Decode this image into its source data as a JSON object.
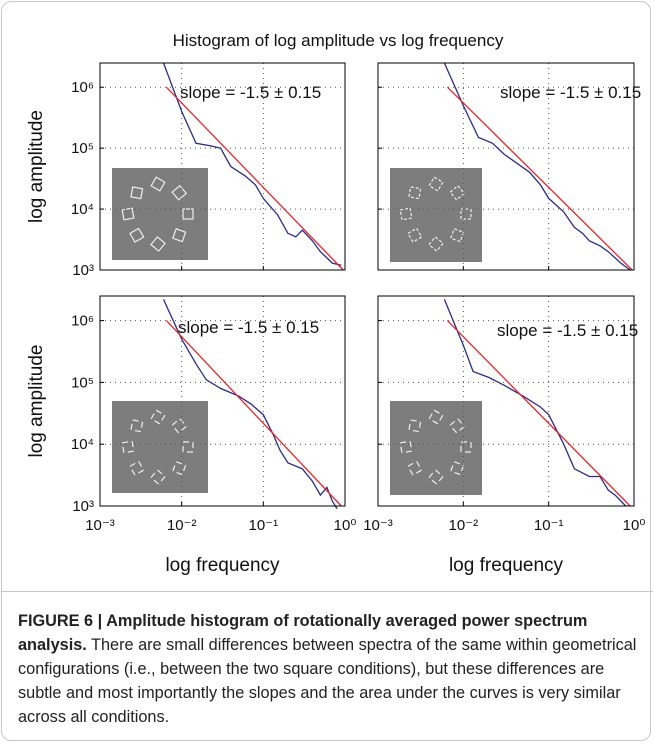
{
  "figure_title": "Histogram of log amplitude vs log frequency",
  "chart_data": [
    {
      "type": "line",
      "ylabel": "log amplitude",
      "annotation": "slope = -1.5 ± 0.15",
      "log_scale": true,
      "grid": true,
      "xlim": [
        0.001,
        1
      ],
      "ylim": [
        1000,
        2500000
      ],
      "xticks": [
        0.001,
        0.01,
        0.1,
        1
      ],
      "xtick_labels": false,
      "yticks": [
        {
          "value": 1000,
          "label": "10³"
        },
        {
          "value": 10000,
          "label": "10⁴"
        },
        {
          "value": 100000,
          "label": "10⁵"
        },
        {
          "value": 1000000,
          "label": "10⁶"
        }
      ],
      "series": [
        {
          "color": "#2b2b8c",
          "x": [
            0.006,
            0.01,
            0.015,
            0.022,
            0.03,
            0.04,
            0.06,
            0.08,
            0.1,
            0.15,
            0.2,
            0.25,
            0.3,
            0.4,
            0.5,
            0.7,
            0.9
          ],
          "values": [
            2500000,
            400000,
            120000,
            110000,
            100000,
            50000,
            35000,
            25000,
            15000,
            8000,
            4000,
            3500,
            4500,
            3000,
            2000,
            1300,
            1200
          ]
        },
        {
          "color": "#e8262a",
          "x": [
            0.0065,
            0.95
          ],
          "values": [
            1000000,
            1000
          ]
        }
      ]
    },
    {
      "type": "line",
      "annotation": "slope = -1.5 ± 0.15",
      "log_scale": true,
      "grid": true,
      "xlim": [
        0.001,
        1
      ],
      "ylim": [
        1000,
        2500000
      ],
      "xticks": [
        0.001,
        0.01,
        0.1,
        1
      ],
      "xtick_labels": false,
      "yticks": [
        1000,
        10000,
        100000,
        1000000
      ],
      "ytick_labels": false,
      "series": [
        {
          "color": "#2b2b8c",
          "x": [
            0.006,
            0.01,
            0.015,
            0.022,
            0.03,
            0.04,
            0.06,
            0.08,
            0.1,
            0.15,
            0.2,
            0.25,
            0.3,
            0.4,
            0.5,
            0.7,
            0.9
          ],
          "values": [
            2500000,
            500000,
            150000,
            120000,
            80000,
            60000,
            40000,
            25000,
            15000,
            9000,
            5000,
            4000,
            3000,
            2500,
            2000,
            1300,
            1000
          ]
        },
        {
          "color": "#e8262a",
          "x": [
            0.0065,
            0.95
          ],
          "values": [
            1000000,
            1000
          ]
        }
      ]
    },
    {
      "type": "line",
      "ylabel": "log amplitude",
      "xlabel": "log frequency",
      "annotation": "slope = -1.5 ± 0.15",
      "log_scale": true,
      "grid": true,
      "xlim": [
        0.001,
        1
      ],
      "ylim": [
        1000,
        2500000
      ],
      "xticks": [
        {
          "value": 0.001,
          "label": "10⁻³"
        },
        {
          "value": 0.01,
          "label": "10⁻²"
        },
        {
          "value": 0.1,
          "label": "10⁻¹"
        },
        {
          "value": 1,
          "label": "10⁰"
        }
      ],
      "yticks": [
        {
          "value": 1000,
          "label": "10³"
        },
        {
          "value": 10000,
          "label": "10⁴"
        },
        {
          "value": 100000,
          "label": "10⁵"
        },
        {
          "value": 1000000,
          "label": "10⁶"
        }
      ],
      "series": [
        {
          "color": "#2b2b8c",
          "x": [
            0.006,
            0.01,
            0.015,
            0.02,
            0.03,
            0.05,
            0.07,
            0.1,
            0.13,
            0.16,
            0.2,
            0.3,
            0.4,
            0.5,
            0.6,
            0.7,
            0.8
          ],
          "values": [
            2200000,
            500000,
            200000,
            110000,
            80000,
            60000,
            45000,
            30000,
            15000,
            8000,
            5000,
            4000,
            2500,
            1500,
            2000,
            1200,
            900
          ]
        },
        {
          "color": "#e8262a",
          "x": [
            0.0065,
            0.9
          ],
          "values": [
            1000000,
            1000
          ]
        }
      ]
    },
    {
      "type": "line",
      "xlabel": "log frequency",
      "annotation": "slope = -1.5 ± 0.15",
      "log_scale": true,
      "grid": true,
      "xlim": [
        0.001,
        1
      ],
      "ylim": [
        1000,
        2500000
      ],
      "xticks": [
        {
          "value": 0.001,
          "label": "10⁻³"
        },
        {
          "value": 0.01,
          "label": "10⁻²"
        },
        {
          "value": 0.1,
          "label": "10⁻¹"
        },
        {
          "value": 1,
          "label": "10⁰"
        }
      ],
      "yticks": [
        1000,
        10000,
        100000,
        1000000
      ],
      "ytick_labels": false,
      "series": [
        {
          "color": "#2b2b8c",
          "x": [
            0.006,
            0.01,
            0.013,
            0.02,
            0.03,
            0.05,
            0.08,
            0.1,
            0.15,
            0.2,
            0.3,
            0.4,
            0.5,
            0.6,
            0.8
          ],
          "values": [
            2200000,
            400000,
            150000,
            120000,
            90000,
            60000,
            40000,
            30000,
            10000,
            4000,
            3000,
            3000,
            1800,
            1500,
            1000
          ]
        },
        {
          "color": "#e8262a",
          "x": [
            0.0065,
            0.9
          ],
          "values": [
            1000000,
            1000
          ]
        }
      ]
    }
  ],
  "caption": {
    "title": "FIGURE 6 | Amplitude histogram of rotationally averaged power spectrum analysis.",
    "text": " There are small differences between spectra of the same within geometrical configurations (i.e., between the two square conditions), but these differences are subtle and most importantly the slopes and the area under the curves is very similar across all conditions."
  }
}
